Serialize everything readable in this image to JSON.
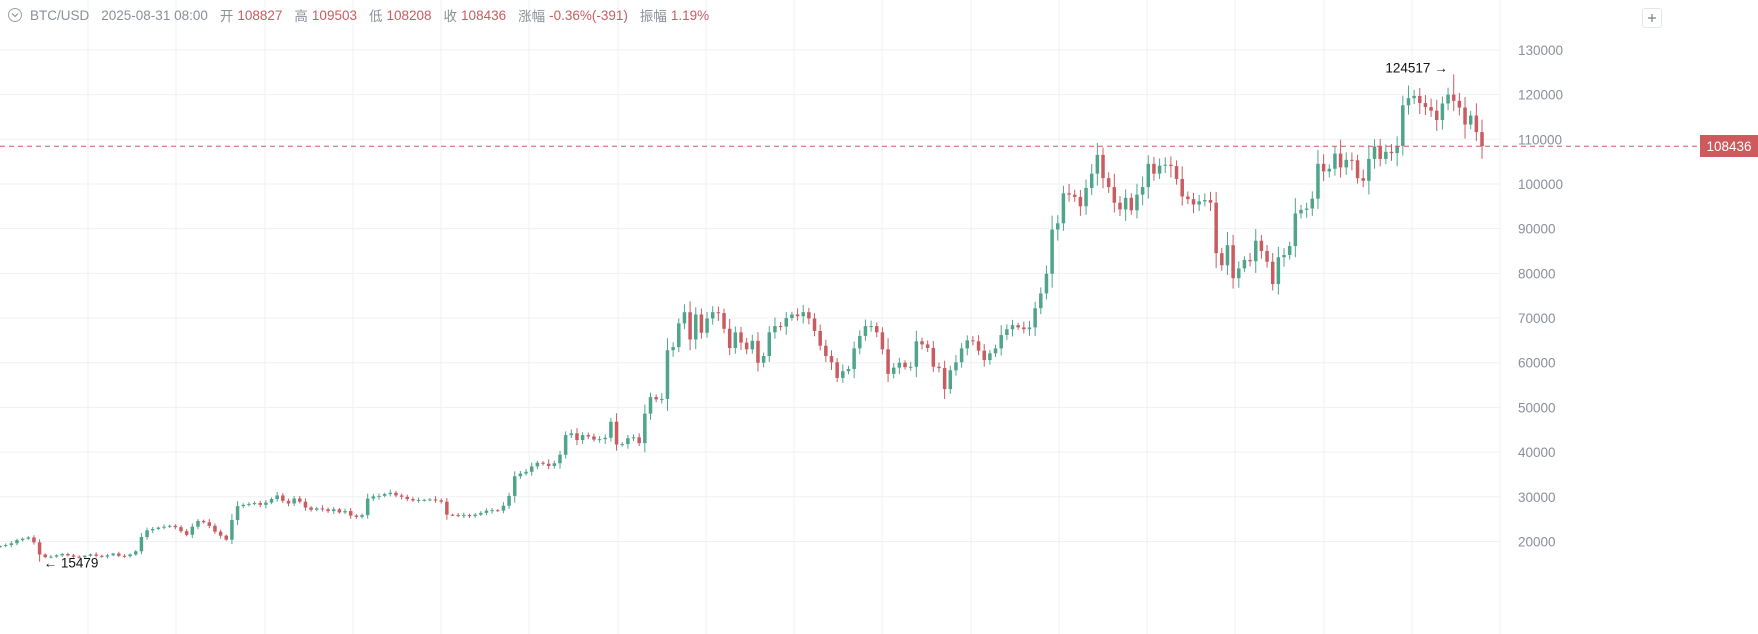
{
  "header": {
    "symbol": "BTC/USD",
    "datetime": "2025-08-31 08:00",
    "open_label": "开",
    "open_value": "108827",
    "high_label": "高",
    "high_value": "109503",
    "low_label": "低",
    "low_value": "108208",
    "close_label": "收",
    "close_value": "108436",
    "change_label": "涨幅",
    "change_value": "-0.36%(-391)",
    "amplitude_label": "振幅",
    "amplitude_value": "1.19%"
  },
  "colors": {
    "up": "#4fa58b",
    "down": "#c95c61",
    "grid": "#f0f1f3",
    "axis_text": "#8a8f99",
    "price_line": "#c95c61"
  },
  "chart_data": {
    "type": "candlestick",
    "symbol": "BTC/USD",
    "interval": "weekly",
    "ylim": [
      12500,
      134000
    ],
    "y_ticks": [
      20000,
      30000,
      40000,
      50000,
      60000,
      70000,
      80000,
      90000,
      100000,
      110000,
      120000,
      130000
    ],
    "y_tick_labels": [
      "20000",
      "30000",
      "40000",
      "50000",
      "60000",
      "70000",
      "80000",
      "90000",
      "100000",
      "110000",
      "120000",
      "130000"
    ],
    "last_price": 108436,
    "last_price_label": "108436",
    "grid": true,
    "max_marker": {
      "value": 124517,
      "label": "124517",
      "arrow": "→"
    },
    "min_marker": {
      "value": 15479,
      "label": "15479",
      "arrow": "←"
    },
    "closes": [
      19000,
      19200,
      19600,
      20300,
      20600,
      20900,
      19800,
      17100,
      16500,
      16600,
      16900,
      17200,
      16900,
      16600,
      16500,
      16800,
      17100,
      16800,
      16600,
      16900,
      17300,
      16800,
      16700,
      17100,
      17800,
      21000,
      22500,
      22800,
      23100,
      23300,
      23500,
      23200,
      22300,
      21500,
      23300,
      24600,
      24300,
      23500,
      22200,
      21300,
      20400,
      24800,
      27900,
      28200,
      28400,
      28600,
      28200,
      28700,
      29500,
      30300,
      29100,
      28500,
      29600,
      28900,
      27600,
      27100,
      27400,
      27200,
      26800,
      27200,
      26500,
      26800,
      25800,
      25500,
      25900,
      29600,
      30100,
      30200,
      30600,
      30900,
      30300,
      30000,
      29500,
      29200,
      29300,
      29300,
      29400,
      29200,
      28900,
      26000,
      25900,
      25800,
      25900,
      25700,
      26000,
      26400,
      26900,
      27000,
      26900,
      28000,
      30200,
      34600,
      35200,
      35600,
      36800,
      37600,
      37400,
      36900,
      37500,
      39400,
      43800,
      44200,
      42700,
      43800,
      43500,
      42800,
      42900,
      43200,
      46800,
      41700,
      41800,
      43100,
      43300,
      42000,
      48600,
      52300,
      51800,
      51900,
      62800,
      63500,
      68800,
      71300,
      65200,
      70800,
      66700,
      69900,
      71300,
      71100,
      67600,
      63300,
      66800,
      64500,
      63000,
      64900,
      60000,
      61500,
      66800,
      68200,
      68100,
      70000,
      70800,
      70400,
      71300,
      69900,
      67100,
      63800,
      61500,
      60100,
      56600,
      58100,
      58600,
      63200,
      66000,
      68200,
      68200,
      66800,
      63000,
      57500,
      58900,
      60000,
      59000,
      59100,
      64800,
      64100,
      63300,
      59100,
      58800,
      54100,
      58300,
      60100,
      63200,
      65000,
      64800,
      62700,
      60600,
      62100,
      63200,
      66200,
      67500,
      68400,
      67900,
      67500,
      67900,
      72200,
      75500,
      79900,
      89800,
      91200,
      97900,
      97600,
      97100,
      95000,
      99100,
      102300,
      106500,
      101300,
      99300,
      95800,
      94300,
      96900,
      94100,
      97600,
      99300,
      104500,
      102300,
      104100,
      104300,
      104000,
      101100,
      97200,
      96600,
      95400,
      96100,
      96400,
      95800,
      84500,
      81800,
      86300,
      78900,
      81100,
      83000,
      82700,
      87300,
      85000,
      82600,
      77600,
      83600,
      84100,
      86100,
      93400,
      94200,
      94500,
      96700,
      104500,
      102800,
      103400,
      106800,
      103700,
      105400,
      105300,
      101300,
      100700,
      105600,
      108400,
      105600,
      107200,
      106900,
      108500,
      117600,
      119200,
      119700,
      118100,
      117200,
      116400,
      114300,
      118000,
      120000,
      118600,
      117100,
      113300,
      115300,
      111600,
      108436
    ]
  }
}
